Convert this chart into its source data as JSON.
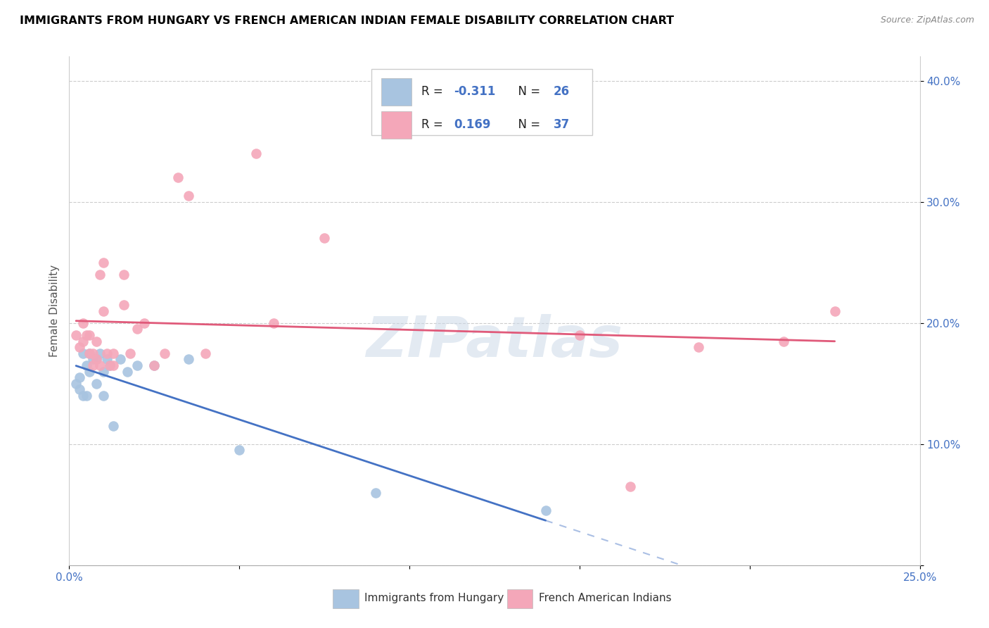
{
  "title": "IMMIGRANTS FROM HUNGARY VS FRENCH AMERICAN INDIAN FEMALE DISABILITY CORRELATION CHART",
  "source": "Source: ZipAtlas.com",
  "ylabel": "Female Disability",
  "xlim": [
    0.0,
    0.25
  ],
  "ylim": [
    0.0,
    0.42
  ],
  "blue_R": -0.311,
  "blue_N": 26,
  "pink_R": 0.169,
  "pink_N": 37,
  "blue_color": "#a8c4e0",
  "pink_color": "#f4a7b9",
  "blue_line_color": "#4472c4",
  "pink_line_color": "#e05a7a",
  "blue_label": "Immigrants from Hungary",
  "pink_label": "French American Indians",
  "watermark": "ZIPatlas",
  "blue_x": [
    0.002,
    0.003,
    0.003,
    0.004,
    0.004,
    0.005,
    0.005,
    0.006,
    0.006,
    0.007,
    0.008,
    0.008,
    0.009,
    0.01,
    0.01,
    0.011,
    0.012,
    0.013,
    0.015,
    0.017,
    0.02,
    0.025,
    0.035,
    0.05,
    0.09,
    0.14
  ],
  "blue_y": [
    0.15,
    0.145,
    0.155,
    0.14,
    0.175,
    0.14,
    0.165,
    0.16,
    0.175,
    0.17,
    0.15,
    0.17,
    0.175,
    0.14,
    0.16,
    0.17,
    0.165,
    0.115,
    0.17,
    0.16,
    0.165,
    0.165,
    0.17,
    0.095,
    0.06,
    0.045
  ],
  "pink_x": [
    0.002,
    0.003,
    0.004,
    0.004,
    0.005,
    0.006,
    0.006,
    0.007,
    0.007,
    0.008,
    0.008,
    0.009,
    0.009,
    0.01,
    0.01,
    0.011,
    0.012,
    0.013,
    0.013,
    0.016,
    0.016,
    0.018,
    0.02,
    0.022,
    0.025,
    0.028,
    0.032,
    0.035,
    0.04,
    0.055,
    0.06,
    0.075,
    0.15,
    0.165,
    0.185,
    0.21,
    0.225
  ],
  "pink_y": [
    0.19,
    0.18,
    0.2,
    0.185,
    0.19,
    0.175,
    0.19,
    0.165,
    0.175,
    0.17,
    0.185,
    0.165,
    0.24,
    0.25,
    0.21,
    0.175,
    0.165,
    0.165,
    0.175,
    0.24,
    0.215,
    0.175,
    0.195,
    0.2,
    0.165,
    0.175,
    0.32,
    0.305,
    0.175,
    0.34,
    0.2,
    0.27,
    0.19,
    0.065,
    0.18,
    0.185,
    0.21
  ]
}
